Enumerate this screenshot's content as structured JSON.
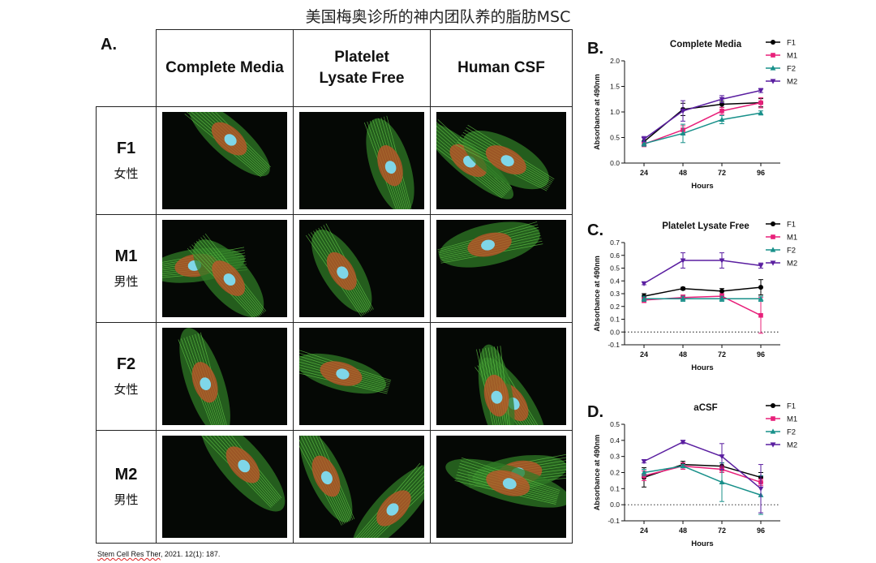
{
  "title": "美国梅奥诊所的神内团队养的脂肪MSC",
  "panel_a": {
    "label": "A.",
    "columns": [
      "Complete Media",
      "Platelet Lysate Free",
      "Human CSF"
    ],
    "rows": [
      {
        "code": "F1",
        "sex": "女性"
      },
      {
        "code": "M1",
        "sex": "男性"
      },
      {
        "code": "F2",
        "sex": "女性"
      },
      {
        "code": "M2",
        "sex": "男性"
      }
    ]
  },
  "citation": {
    "journal": "Stem Cell Res Ther",
    "rest": ", 2021. 12(1): 187."
  },
  "colors": {
    "F1": "#000000",
    "M1": "#e8207a",
    "F2": "#18908a",
    "M2": "#5a1ea0"
  },
  "chart_data": [
    {
      "panel": "B.",
      "type": "line",
      "title": "Complete Media",
      "xlabel": "Hours",
      "ylabel": "Absorbance at 490nm",
      "x": [
        24,
        48,
        72,
        96
      ],
      "ylim": [
        0,
        2.0
      ],
      "yticks": [
        0.0,
        0.5,
        1.0,
        1.5,
        2.0
      ],
      "ytick_labels": [
        "0.0",
        "0.5",
        "1.0",
        "1.5",
        "2.0"
      ],
      "zero_line": false,
      "legend_position": "right",
      "series": [
        {
          "name": "F1",
          "marker": "circle",
          "values": [
            0.42,
            1.05,
            1.15,
            1.18
          ],
          "err": [
            0.08,
            0.12,
            0.06,
            0.08
          ]
        },
        {
          "name": "M1",
          "marker": "square",
          "values": [
            0.37,
            0.65,
            1.02,
            1.18
          ],
          "err": [
            0.05,
            0.08,
            0.07,
            0.1
          ]
        },
        {
          "name": "F2",
          "marker": "triangle-up",
          "values": [
            0.38,
            0.58,
            0.85,
            0.98
          ],
          "err": [
            0.05,
            0.18,
            0.08,
            0.04
          ]
        },
        {
          "name": "M2",
          "marker": "triangle-down",
          "values": [
            0.47,
            1.02,
            1.25,
            1.42
          ],
          "err": [
            0.05,
            0.2,
            0.07,
            0.04
          ]
        }
      ]
    },
    {
      "panel": "C.",
      "type": "line",
      "title": "Platelet Lysate Free",
      "xlabel": "Hours",
      "ylabel": "Absorbance at 490nm",
      "x": [
        24,
        48,
        72,
        96
      ],
      "ylim": [
        -0.1,
        0.7
      ],
      "yticks": [
        -0.1,
        0.0,
        0.1,
        0.2,
        0.3,
        0.4,
        0.5,
        0.6,
        0.7
      ],
      "ytick_labels": [
        "-0.1",
        "0.0",
        "0.1",
        "0.2",
        "0.3",
        "0.4",
        "0.5",
        "0.6",
        "0.7"
      ],
      "zero_line": true,
      "legend_position": "right",
      "series": [
        {
          "name": "F1",
          "marker": "circle",
          "values": [
            0.28,
            0.34,
            0.32,
            0.35
          ],
          "err": [
            0.02,
            0.01,
            0.02,
            0.06
          ]
        },
        {
          "name": "M1",
          "marker": "square",
          "values": [
            0.25,
            0.27,
            0.28,
            0.13
          ],
          "err": [
            0.02,
            0.02,
            0.02,
            0.14
          ]
        },
        {
          "name": "F2",
          "marker": "triangle-up",
          "values": [
            0.26,
            0.26,
            0.26,
            0.26
          ],
          "err": [
            0.02,
            0.02,
            0.02,
            0.02
          ]
        },
        {
          "name": "M2",
          "marker": "triangle-down",
          "values": [
            0.38,
            0.56,
            0.56,
            0.52
          ],
          "err": [
            0.01,
            0.06,
            0.06,
            0.02
          ]
        }
      ]
    },
    {
      "panel": "D.",
      "type": "line",
      "title": "aCSF",
      "xlabel": "Hours",
      "ylabel": "Absorbance at 490nm",
      "x": [
        24,
        48,
        72,
        96
      ],
      "ylim": [
        -0.1,
        0.5
      ],
      "yticks": [
        -0.1,
        0.0,
        0.1,
        0.2,
        0.3,
        0.4,
        0.5
      ],
      "ytick_labels": [
        "-0.1",
        "0.0",
        "0.1",
        "0.2",
        "0.3",
        "0.4",
        "0.5"
      ],
      "zero_line": true,
      "legend_position": "right",
      "series": [
        {
          "name": "F1",
          "marker": "circle",
          "values": [
            0.17,
            0.25,
            0.24,
            0.17
          ],
          "err": [
            0.06,
            0.02,
            0.02,
            0.03
          ]
        },
        {
          "name": "M1",
          "marker": "square",
          "values": [
            0.18,
            0.24,
            0.22,
            0.14
          ],
          "err": [
            0.03,
            0.02,
            0.02,
            0.02
          ]
        },
        {
          "name": "F2",
          "marker": "triangle-up",
          "values": [
            0.2,
            0.24,
            0.14,
            0.06
          ],
          "err": [
            0.02,
            0.01,
            0.12,
            0.12
          ]
        },
        {
          "name": "M2",
          "marker": "triangle-down",
          "values": [
            0.27,
            0.39,
            0.3,
            0.1
          ],
          "err": [
            0.01,
            0.01,
            0.08,
            0.15
          ]
        }
      ]
    }
  ]
}
